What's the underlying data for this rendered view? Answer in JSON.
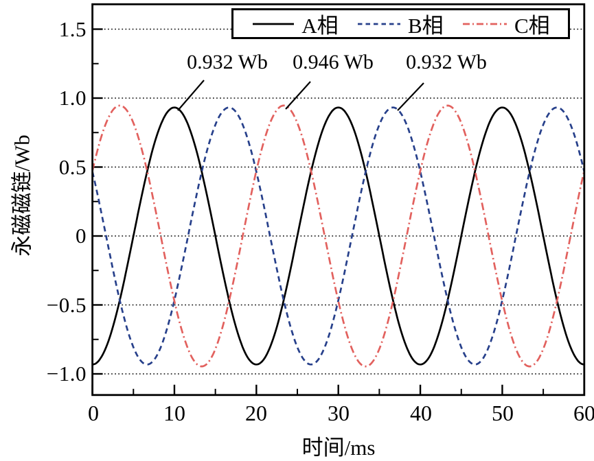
{
  "chart_data": {
    "type": "line",
    "title": "",
    "xlabel": "时间/ms",
    "ylabel": "永磁磁链/Wb",
    "xlim": [
      0,
      60
    ],
    "ylim": [
      -1.16,
      1.69
    ],
    "x_major_ticks": [
      0,
      10,
      20,
      30,
      40,
      50,
      60
    ],
    "x_minor_ticks": [
      5,
      15,
      25,
      35,
      45,
      55
    ],
    "y_major_ticks": [
      {
        "value": 1.5,
        "label": "1.5"
      },
      {
        "value": 1.0,
        "label": "1.0"
      },
      {
        "value": 0.5,
        "label": "0.5"
      },
      {
        "value": 0,
        "label": "0"
      },
      {
        "value": -0.5,
        "label": "−0.5"
      },
      {
        "value": -1.0,
        "label": "−1.0"
      }
    ],
    "y_minor_ticks": [
      1.25,
      0.75,
      0.25,
      -0.25,
      -0.75
    ],
    "grid": {
      "horizontal_dotted_at_y_major": true,
      "color": "#000000"
    },
    "waveform": "sinusoidal, v(t) = amplitude_wb * cos(2*pi*(t - peak_time_ms)/period_ms)",
    "period_ms": 20,
    "series": [
      {
        "name": "A相",
        "color": "#000000",
        "line_style": "solid",
        "amplitude_wb": 0.932,
        "peak_time_ms": 10,
        "value_at_t0_wb": -0.932
      },
      {
        "name": "B相",
        "color": "#27408b",
        "line_style": "dashed",
        "amplitude_wb": 0.932,
        "peak_time_ms": 16.667,
        "value_at_t0_wb": 0.466
      },
      {
        "name": "C相",
        "color": "#e2615e",
        "line_style": "dash-dot",
        "amplitude_wb": 0.946,
        "peak_time_ms": 3.333,
        "value_at_t0_wb": 0.473
      }
    ],
    "legend": {
      "position": "top-center-inside",
      "entries": [
        "A相",
        "B相",
        "C相"
      ]
    },
    "annotations": [
      {
        "text": "0.932 Wb",
        "series": "A相",
        "target_t_ms": 10
      },
      {
        "text": "0.946 Wb",
        "series": "C相",
        "target_t_ms": 23.3
      },
      {
        "text": "0.932 Wb",
        "series": "B相",
        "target_t_ms": 36.7
      }
    ]
  }
}
